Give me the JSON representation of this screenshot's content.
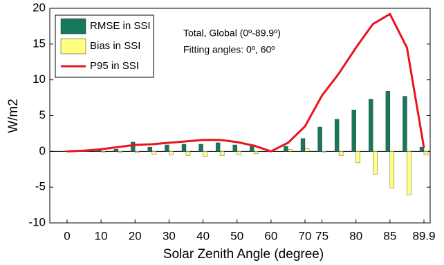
{
  "chart_data": {
    "type": "bar_line",
    "xlabel": "Solar Zenith Angle (degree)",
    "ylabel": "W/m2",
    "annotations": [
      "Total, Global (0º-89.9º)",
      "Fitting angles: 0º, 60º"
    ],
    "categories": [
      "0",
      null,
      "10",
      null,
      "20",
      null,
      "30",
      null,
      "40",
      null,
      "50",
      null,
      "60",
      null,
      "70",
      "75",
      null,
      "80",
      null,
      "85",
      null,
      "89.9"
    ],
    "series": [
      {
        "name": "RMSE in SSI",
        "type": "bar",
        "color": "#17785c",
        "values": [
          0.05,
          0.1,
          0.15,
          0.3,
          1.3,
          0.6,
          0.9,
          1.0,
          1.0,
          1.2,
          0.9,
          0.7,
          0.05,
          0.7,
          1.8,
          3.4,
          4.5,
          5.8,
          7.3,
          8.4,
          7.7,
          0.6
        ]
      },
      {
        "name": "Bias in SSI",
        "type": "bar",
        "color": "#ffff80",
        "values": [
          0,
          0,
          -0.1,
          -0.2,
          -0.2,
          -0.4,
          -0.5,
          -0.6,
          -0.7,
          -0.6,
          -0.5,
          -0.3,
          0,
          0.3,
          0.4,
          -0.1,
          -0.6,
          -1.6,
          -3.2,
          -5.1,
          -6.1,
          -0.5
        ]
      },
      {
        "name": "P95 in SSI",
        "type": "line",
        "color": "#e8141c",
        "values": [
          0,
          0.1,
          0.3,
          0.6,
          0.9,
          1.0,
          1.2,
          1.4,
          1.6,
          1.6,
          1.3,
          0.8,
          0,
          1.2,
          3.5,
          7.8,
          10.9,
          14.5,
          17.8,
          19.2,
          14.5,
          0.5
        ]
      }
    ],
    "ylim": [
      -10,
      20
    ],
    "yticks": [
      -10,
      -5,
      0,
      5,
      10,
      15,
      20
    ],
    "grid": false,
    "legend": "upper left"
  }
}
